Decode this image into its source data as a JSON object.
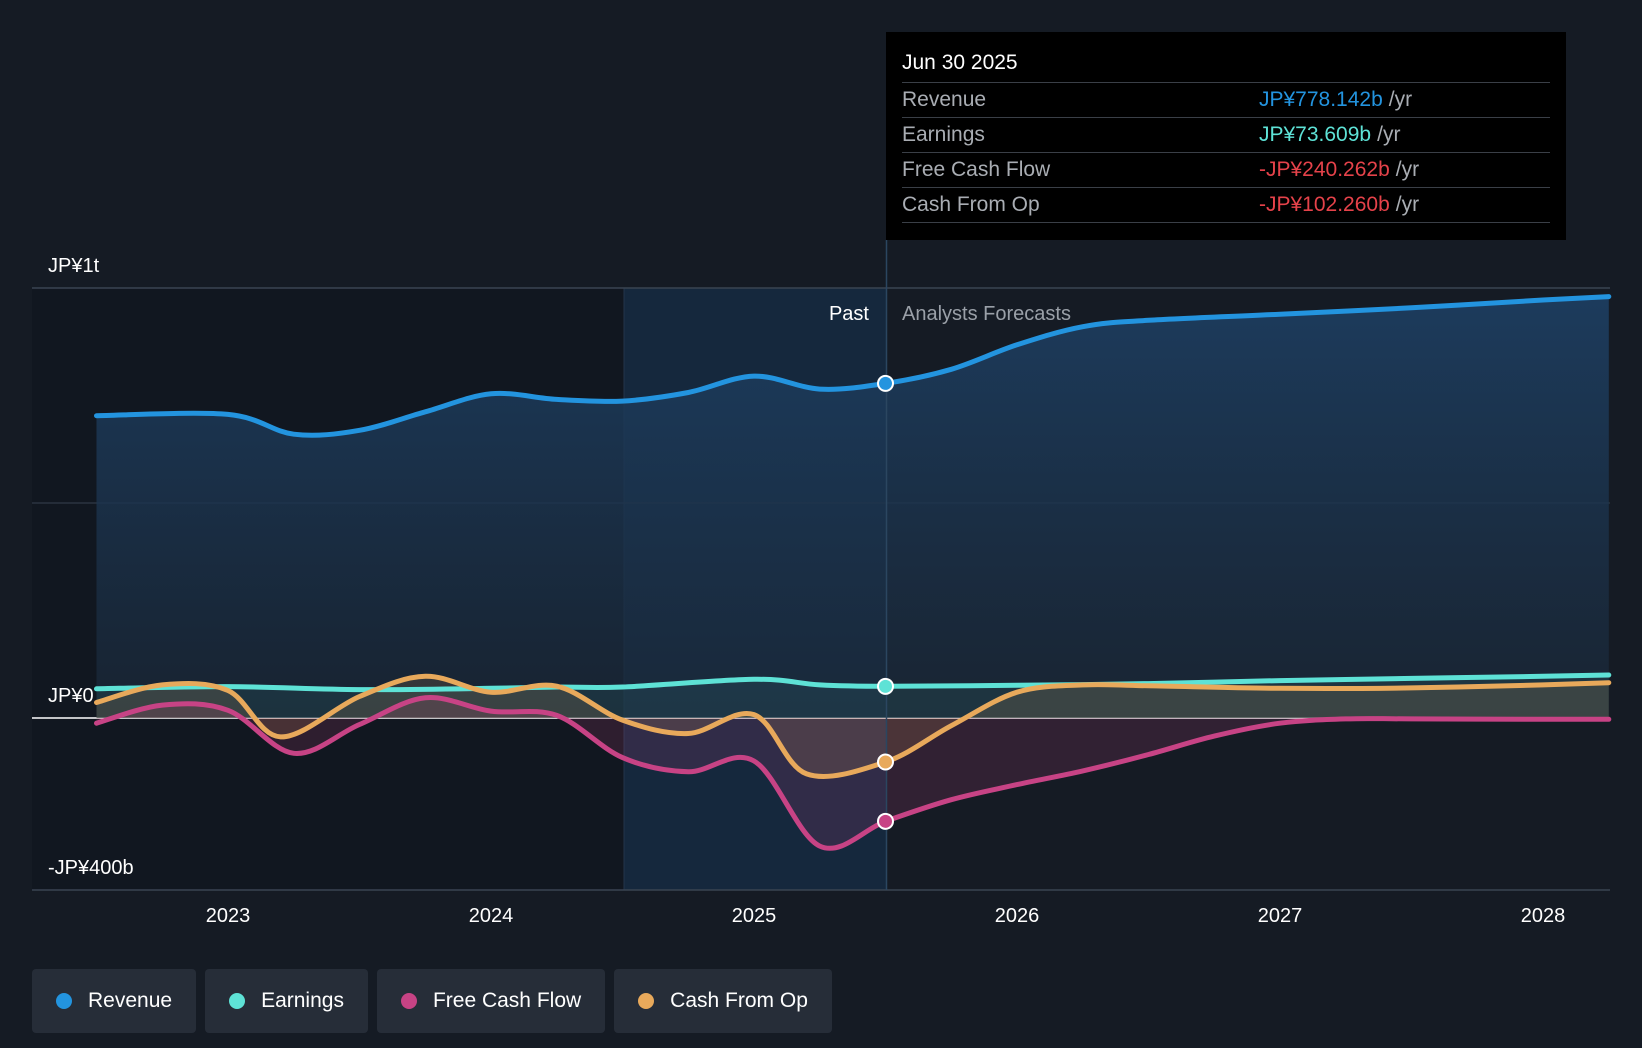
{
  "tooltip": {
    "date": "Jun 30 2025",
    "rows": [
      {
        "label": "Revenue",
        "value": "JP¥778.142b",
        "unit": "/yr",
        "color": "#2394df"
      },
      {
        "label": "Earnings",
        "value": "JP¥73.609b",
        "unit": "/yr",
        "color": "#5ee2d6"
      },
      {
        "label": "Free Cash Flow",
        "value": "-JP¥240.262b",
        "unit": "/yr",
        "color": "#e5424a"
      },
      {
        "label": "Cash From Op",
        "value": "-JP¥102.260b",
        "unit": "/yr",
        "color": "#e5424a"
      }
    ]
  },
  "legend": [
    {
      "label": "Revenue",
      "color": "#2394df"
    },
    {
      "label": "Earnings",
      "color": "#5ee2d6"
    },
    {
      "label": "Free Cash Flow",
      "color": "#c74385"
    },
    {
      "label": "Cash From Op",
      "color": "#e8a95b"
    }
  ],
  "chart_data": {
    "type": "line",
    "title": "",
    "xlabel": "",
    "ylabel": "",
    "ylim": [
      -400,
      1000
    ],
    "xlim": [
      2022.45,
      2028.25
    ],
    "y_tick_labels": [
      {
        "value": 1000,
        "label": "JP¥1t"
      },
      {
        "value": 0,
        "label": "JP¥0"
      },
      {
        "value": -400,
        "label": "-JP¥400b"
      }
    ],
    "x_ticks": [
      2023,
      2024,
      2025,
      2026,
      2027,
      2028
    ],
    "x_tick_labels": [
      "2023",
      "2024",
      "2025",
      "2026",
      "2027",
      "2028"
    ],
    "past_label": "Past",
    "forecast_label": "Analysts Forecasts",
    "past_start": 2024.5,
    "forecast_start": 2025.5,
    "grid": true,
    "series": [
      {
        "name": "Revenue",
        "color": "#2394df",
        "marker_x": 2025.5,
        "marker_y": 778.142,
        "points": [
          [
            2022.5,
            703
          ],
          [
            2023,
            706
          ],
          [
            2023.25,
            660
          ],
          [
            2023.5,
            669
          ],
          [
            2023.75,
            712
          ],
          [
            2024,
            754
          ],
          [
            2024.25,
            741
          ],
          [
            2024.5,
            737
          ],
          [
            2024.75,
            757
          ],
          [
            2025,
            795
          ],
          [
            2025.25,
            765
          ],
          [
            2025.5,
            778.142
          ],
          [
            2025.75,
            811
          ],
          [
            2026,
            868
          ],
          [
            2026.25,
            910
          ],
          [
            2026.5,
            925
          ],
          [
            2027,
            939
          ],
          [
            2027.5,
            954
          ],
          [
            2028,
            972
          ],
          [
            2028.25,
            980
          ]
        ]
      },
      {
        "name": "Earnings",
        "color": "#5ee2d6",
        "marker_x": 2025.5,
        "marker_y": 73.609,
        "points": [
          [
            2022.5,
            68
          ],
          [
            2023,
            73
          ],
          [
            2023.5,
            66
          ],
          [
            2024,
            69
          ],
          [
            2024.25,
            72
          ],
          [
            2024.5,
            72
          ],
          [
            2025,
            90
          ],
          [
            2025.25,
            77
          ],
          [
            2025.5,
            73.609
          ],
          [
            2026,
            76
          ],
          [
            2026.5,
            80
          ],
          [
            2027,
            87
          ],
          [
            2027.5,
            92
          ],
          [
            2028,
            97
          ],
          [
            2028.25,
            100
          ]
        ]
      },
      {
        "name": "Free Cash Flow",
        "color": "#c74385",
        "marker_x": 2025.5,
        "marker_y": -240.262,
        "points": [
          [
            2022.5,
            -12
          ],
          [
            2022.75,
            30
          ],
          [
            2023,
            18
          ],
          [
            2023.25,
            -82
          ],
          [
            2023.5,
            -15
          ],
          [
            2023.75,
            47
          ],
          [
            2024,
            16
          ],
          [
            2024.25,
            6
          ],
          [
            2024.5,
            -92
          ],
          [
            2024.75,
            -125
          ],
          [
            2025,
            -100
          ],
          [
            2025.25,
            -298
          ],
          [
            2025.5,
            -240.262
          ],
          [
            2025.75,
            -190
          ],
          [
            2026,
            -155
          ],
          [
            2026.25,
            -123
          ],
          [
            2026.5,
            -85
          ],
          [
            2026.75,
            -42
          ],
          [
            2027,
            -12
          ],
          [
            2027.25,
            -2
          ],
          [
            2027.5,
            -2
          ],
          [
            2028,
            -3
          ],
          [
            2028.25,
            -3
          ]
        ]
      },
      {
        "name": "Cash From Op",
        "color": "#e8a95b",
        "marker_x": 2025.5,
        "marker_y": -102.26,
        "points": [
          [
            2022.5,
            36
          ],
          [
            2022.75,
            77
          ],
          [
            2023,
            64
          ],
          [
            2023.2,
            -44
          ],
          [
            2023.5,
            50
          ],
          [
            2023.75,
            97
          ],
          [
            2024,
            60
          ],
          [
            2024.25,
            74
          ],
          [
            2024.5,
            -5
          ],
          [
            2024.75,
            -36
          ],
          [
            2025,
            8
          ],
          [
            2025.2,
            -130
          ],
          [
            2025.5,
            -102.26
          ],
          [
            2025.75,
            -18
          ],
          [
            2026,
            60
          ],
          [
            2026.25,
            77
          ],
          [
            2026.5,
            75
          ],
          [
            2027,
            69
          ],
          [
            2027.5,
            70
          ],
          [
            2028,
            77
          ],
          [
            2028.25,
            82
          ]
        ]
      }
    ]
  }
}
